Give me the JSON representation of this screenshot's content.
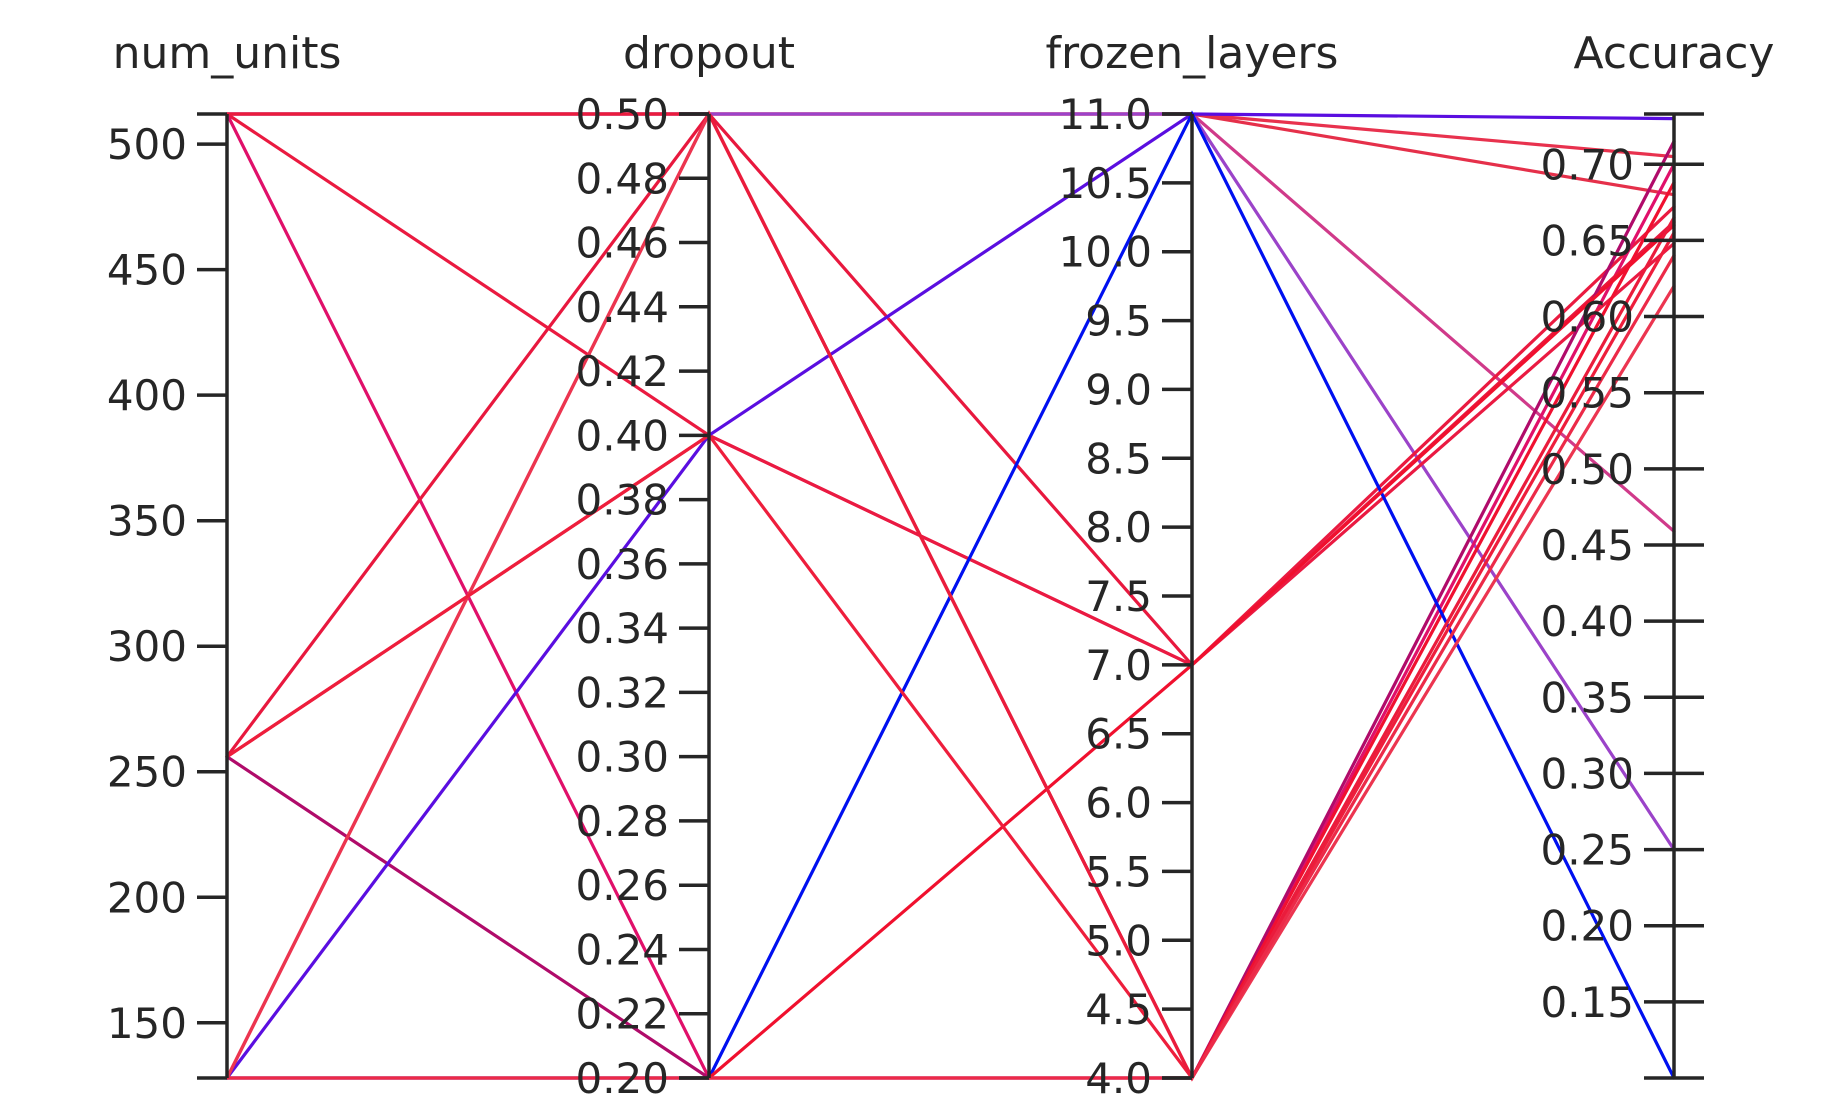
{
  "chart_data": {
    "type": "parallel_coordinates",
    "axes": [
      {
        "key": "num_units",
        "label": "num_units",
        "range": [
          128,
          512
        ],
        "ticks": [
          "150",
          "200",
          "250",
          "300",
          "350",
          "400",
          "450",
          "500"
        ],
        "tick_values": [
          150,
          200,
          250,
          300,
          350,
          400,
          450,
          500
        ]
      },
      {
        "key": "dropout",
        "label": "dropout",
        "range": [
          0.2,
          0.5
        ],
        "ticks": [
          "0.20",
          "0.22",
          "0.24",
          "0.26",
          "0.28",
          "0.30",
          "0.32",
          "0.34",
          "0.36",
          "0.38",
          "0.40",
          "0.42",
          "0.44",
          "0.46",
          "0.48",
          "0.50"
        ],
        "tick_values": [
          0.2,
          0.22,
          0.24,
          0.26,
          0.28,
          0.3,
          0.32,
          0.34,
          0.36,
          0.38,
          0.4,
          0.42,
          0.44,
          0.46,
          0.48,
          0.5
        ]
      },
      {
        "key": "frozen_layers",
        "label": "frozen_layers",
        "range": [
          4,
          11
        ],
        "ticks": [
          "4.0",
          "4.5",
          "5.0",
          "5.5",
          "6.0",
          "6.5",
          "7.0",
          "7.5",
          "8.0",
          "8.5",
          "9.0",
          "9.5",
          "10.0",
          "10.5",
          "11.0"
        ],
        "tick_values": [
          4.0,
          4.5,
          5.0,
          5.5,
          6.0,
          6.5,
          7.0,
          7.5,
          8.0,
          8.5,
          9.0,
          9.5,
          10.0,
          10.5,
          11.0
        ]
      },
      {
        "key": "accuracy",
        "label": "Accuracy",
        "range": [
          0.1,
          0.733
        ],
        "ticks": [
          "0.15",
          "0.20",
          "0.25",
          "0.30",
          "0.35",
          "0.40",
          "0.45",
          "0.50",
          "0.55",
          "0.60",
          "0.65",
          "0.70"
        ],
        "tick_values": [
          0.15,
          0.2,
          0.25,
          0.3,
          0.35,
          0.4,
          0.45,
          0.5,
          0.55,
          0.6,
          0.65,
          0.7
        ]
      }
    ],
    "series": [
      {
        "values": [
          512,
          0.5,
          11,
          0.705
        ],
        "color": "#e8324e"
      },
      {
        "values": [
          512,
          0.5,
          11,
          0.68
        ],
        "color": "#e5304a"
      },
      {
        "values": [
          512,
          0.5,
          11,
          0.459
        ],
        "color": "#d03a8a"
      },
      {
        "values": [
          512,
          0.5,
          11,
          0.25
        ],
        "color": "#9b43c9"
      },
      {
        "values": [
          512,
          0.4,
          7,
          0.672
        ],
        "color": "#ea1a40"
      },
      {
        "values": [
          512,
          0.2,
          4,
          0.7
        ],
        "color": "#e0106a"
      },
      {
        "values": [
          256,
          0.5,
          7,
          0.662
        ],
        "color": "#e8183e"
      },
      {
        "values": [
          256,
          0.4,
          7,
          0.648
        ],
        "color": "#ea1a42"
      },
      {
        "values": [
          256,
          0.2,
          4,
          0.715
        ],
        "color": "#b00b6a"
      },
      {
        "values": [
          128,
          0.5,
          4,
          0.688
        ],
        "color": "#f01030"
      },
      {
        "values": [
          128,
          0.4,
          11,
          0.73
        ],
        "color": "#5a0ee0"
      },
      {
        "values": [
          128,
          0.2,
          11,
          0.1
        ],
        "color": "#0010f0"
      },
      {
        "values": [
          128,
          0.2,
          7,
          0.66
        ],
        "color": "#f0102e"
      },
      {
        "values": [
          128,
          0.5,
          4,
          0.62
        ],
        "color": "#ec3550"
      },
      {
        "values": [
          256,
          0.4,
          4,
          0.655
        ],
        "color": "#ee1e3c"
      },
      {
        "values": [
          512,
          0.5,
          4,
          0.665
        ],
        "color": "#ea1c3c"
      },
      {
        "values": [
          128,
          0.2,
          4,
          0.64
        ],
        "color": "#ec2a48"
      }
    ]
  }
}
